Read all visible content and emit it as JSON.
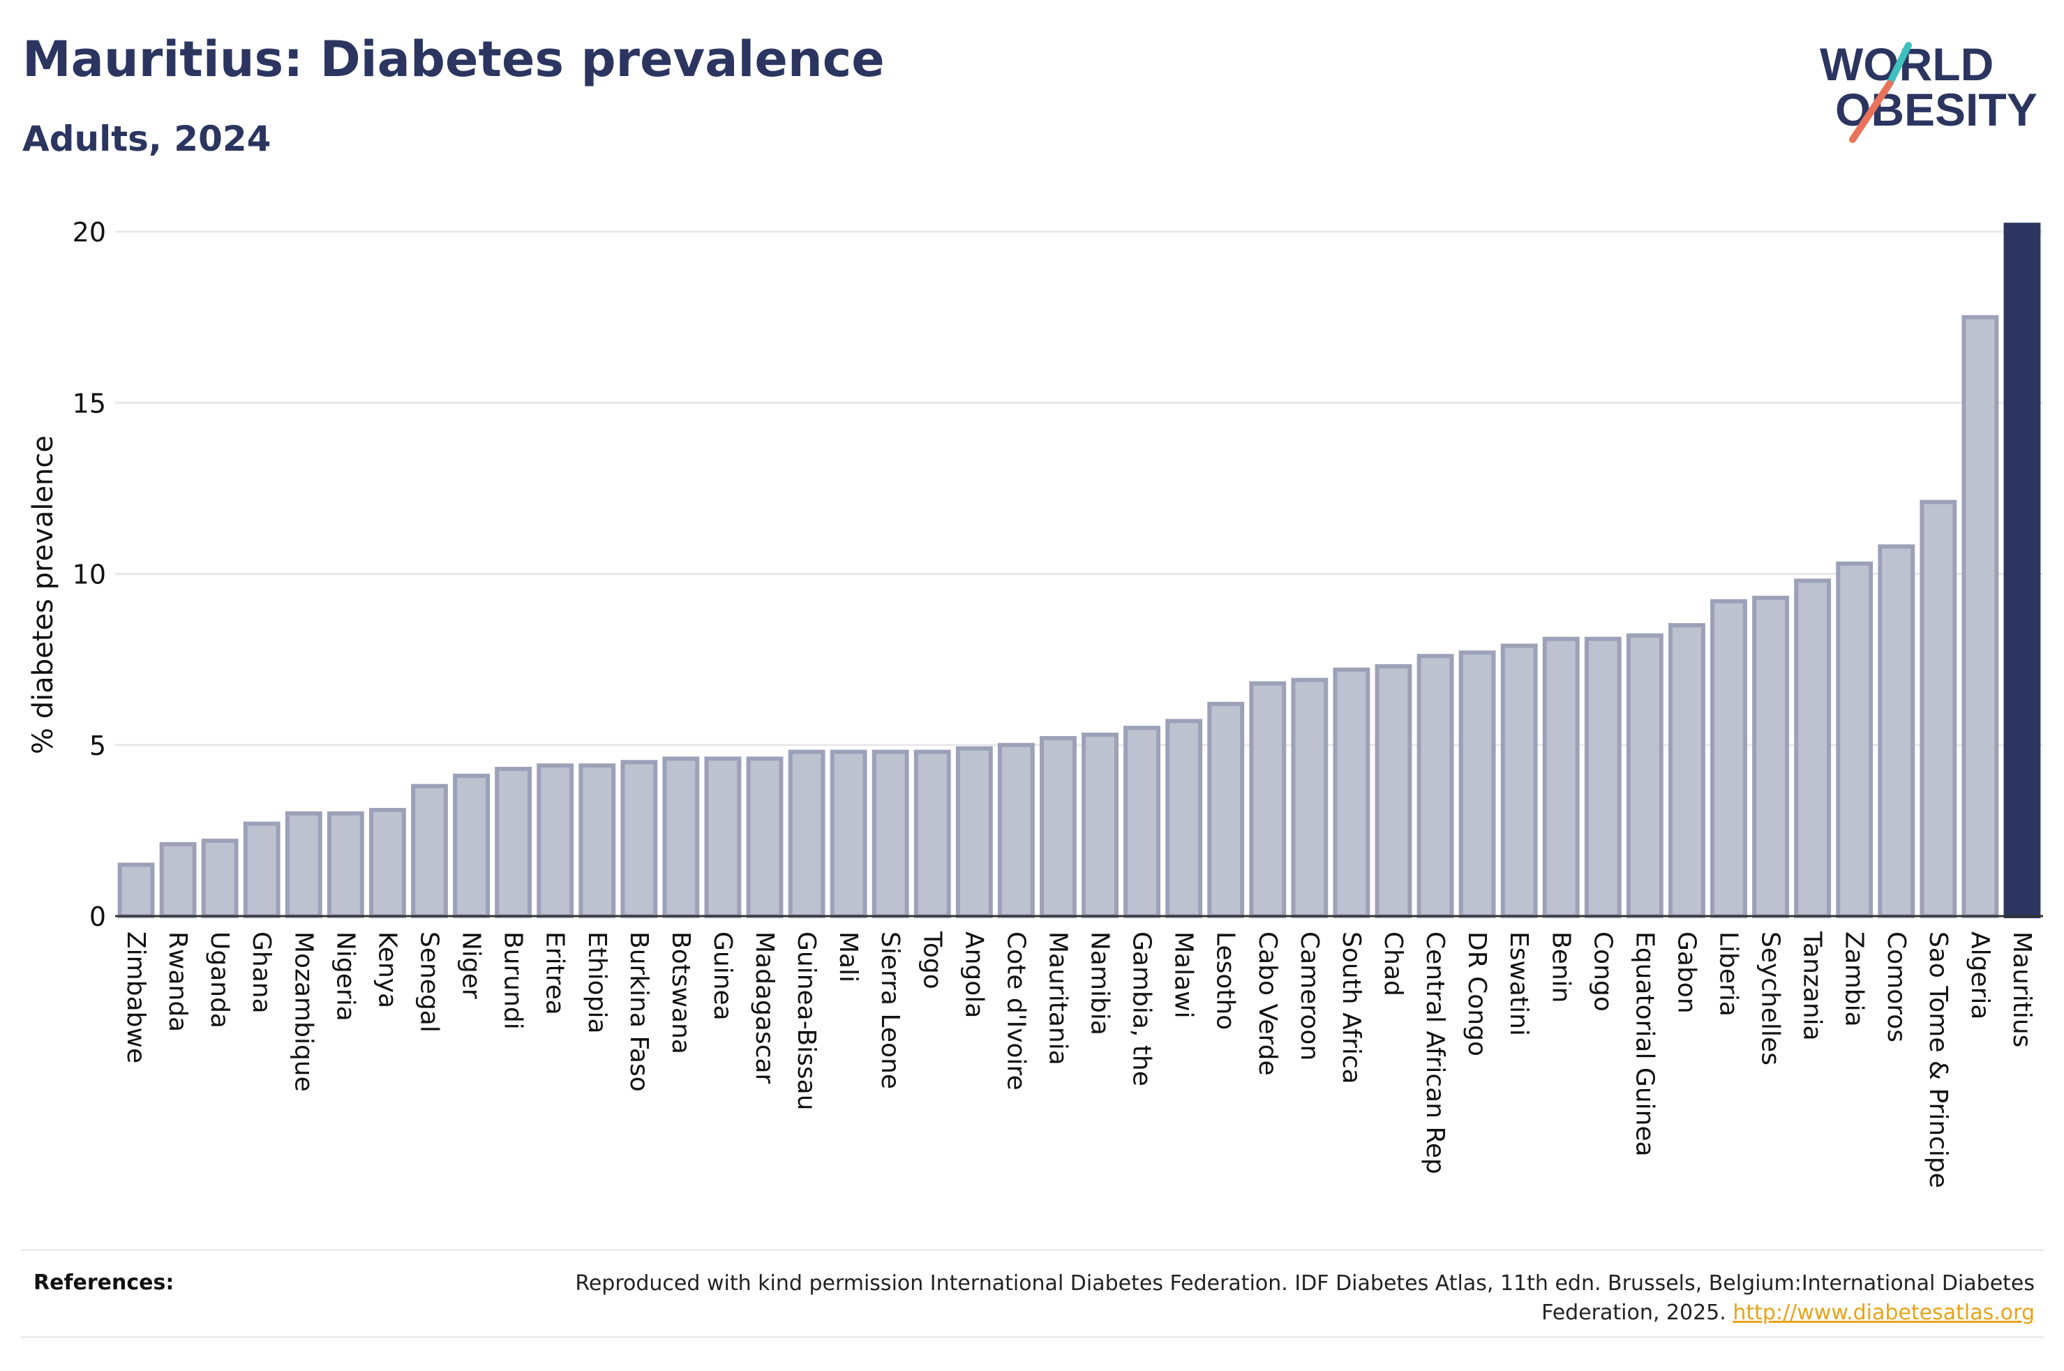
{
  "title": "Mauritius: Diabetes prevalence",
  "subtitle": "Adults, 2024",
  "logo": {
    "line1": "WORLD",
    "line2": "OBESITY"
  },
  "colors": {
    "highlight": "#2b3560",
    "bar_fill": "#bec1d0",
    "bar_stroke": "#9ca1b8",
    "grid": "#e8e8ec",
    "logo_teal": "#3fbfbf",
    "logo_coral": "#e8735a"
  },
  "chart_data": {
    "type": "bar",
    "ylabel": "% diabetes prevalence",
    "ylim": [
      0,
      20
    ],
    "yticks": [
      0,
      5,
      10,
      15,
      20
    ],
    "grid": true,
    "highlight_category": "Mauritius",
    "categories": [
      "Zimbabwe",
      "Rwanda",
      "Uganda",
      "Ghana",
      "Mozambique",
      "Nigeria",
      "Kenya",
      "Senegal",
      "Niger",
      "Burundi",
      "Eritrea",
      "Ethiopia",
      "Burkina Faso",
      "Botswana",
      "Guinea",
      "Madagascar",
      "Guinea-Bissau",
      "Mali",
      "Sierra Leone",
      "Togo",
      "Angola",
      "Cote d'Ivoire",
      "Mauritania",
      "Namibia",
      "Gambia, the",
      "Malawi",
      "Lesotho",
      "Cabo Verde",
      "Cameroon",
      "South Africa",
      "Chad",
      "Central African Rep",
      "DR Congo",
      "Eswatini",
      "Benin",
      "Congo",
      "Equatorial Guinea",
      "Gabon",
      "Liberia",
      "Seychelles",
      "Tanzania",
      "Zambia",
      "Comoros",
      "Sao Tome & Principe",
      "Algeria",
      "Mauritius"
    ],
    "values": [
      1.5,
      2.1,
      2.2,
      2.7,
      3.0,
      3.0,
      3.1,
      3.8,
      4.1,
      4.3,
      4.4,
      4.4,
      4.5,
      4.6,
      4.6,
      4.6,
      4.8,
      4.8,
      4.8,
      4.8,
      4.9,
      5.0,
      5.2,
      5.3,
      5.5,
      5.7,
      6.2,
      6.8,
      6.9,
      7.2,
      7.3,
      7.6,
      7.7,
      7.9,
      8.1,
      8.1,
      8.2,
      8.5,
      9.2,
      9.3,
      9.8,
      10.3,
      10.8,
      12.1,
      17.5,
      20.2
    ]
  },
  "references": {
    "label": "References:",
    "text": "Reproduced with kind permission International Diabetes Federation. IDF Diabetes Atlas, 11th edn. Brussels, Belgium:International Diabetes Federation, 2025.",
    "link": "http://www.diabetesatlas.org"
  }
}
